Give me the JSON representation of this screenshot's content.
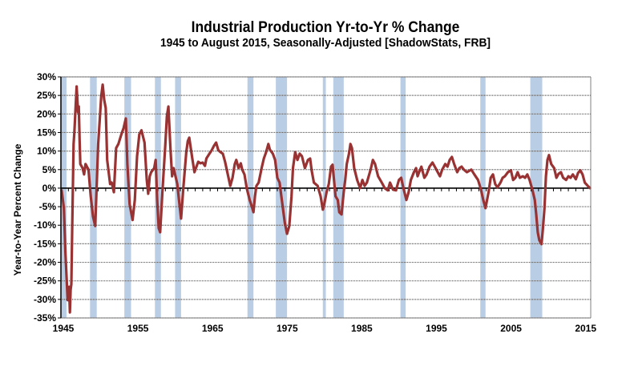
{
  "chart_data": {
    "type": "line",
    "title": "Industrial Production Yr-to-Yr %  Change",
    "subtitle": "1945 to August 2015, Seasonally-Adjusted [ShadowStats, FRB]",
    "xlabel": "",
    "ylabel": "Year-to-Year Percent Change",
    "xlim": [
      1945,
      2016
    ],
    "ylim": [
      -35,
      30
    ],
    "grid": true,
    "x_ticks": [
      {
        "value": 1945,
        "label": "1945"
      },
      {
        "value": 1955,
        "label": "1955"
      },
      {
        "value": 1965,
        "label": "1965"
      },
      {
        "value": 1975,
        "label": "1975"
      },
      {
        "value": 1985,
        "label": "1985"
      },
      {
        "value": 1995,
        "label": "1995"
      },
      {
        "value": 2005,
        "label": "2005"
      },
      {
        "value": 2015,
        "label": "2015"
      }
    ],
    "y_ticks": [
      {
        "value": 30,
        "label": "30%"
      },
      {
        "value": 25,
        "label": "25%"
      },
      {
        "value": 20,
        "label": "20%"
      },
      {
        "value": 15,
        "label": "15%"
      },
      {
        "value": 10,
        "label": "10%"
      },
      {
        "value": 5,
        "label": "5%"
      },
      {
        "value": 0,
        "label": "0%"
      },
      {
        "value": -5,
        "label": "-5%"
      },
      {
        "value": -10,
        "label": "-10%"
      },
      {
        "value": -15,
        "label": "-15%"
      },
      {
        "value": -20,
        "label": "-20%"
      },
      {
        "value": -25,
        "label": "-25%"
      },
      {
        "value": -30,
        "label": "-30%"
      },
      {
        "value": -35,
        "label": "-35%"
      }
    ],
    "recessions": [
      [
        1945.0,
        1945.75
      ],
      [
        1948.9,
        1949.8
      ],
      [
        1953.5,
        1954.4
      ],
      [
        1957.6,
        1958.4
      ],
      [
        1960.3,
        1961.1
      ],
      [
        1970.0,
        1970.8
      ],
      [
        1973.8,
        1975.3
      ],
      [
        1980.1,
        1980.5
      ],
      [
        1981.5,
        1982.9
      ],
      [
        1990.5,
        1991.2
      ],
      [
        2001.2,
        2001.9
      ],
      [
        2007.9,
        2009.5
      ]
    ],
    "colors": {
      "line": "#993333",
      "recession": "#B9CDE5",
      "grid": "#555555",
      "axis": "#000000",
      "frame": "#808080"
    },
    "series": [
      {
        "name": "Industrial Production Yr-to-Yr % Change",
        "x": [
          1945.1,
          1945.4,
          1945.6,
          1945.9,
          1946.1,
          1946.2,
          1946.3,
          1946.4,
          1946.5,
          1946.7,
          1946.8,
          1947.1,
          1947.3,
          1947.4,
          1947.5,
          1947.6,
          1947.9,
          1948.1,
          1948.3,
          1948.7,
          1949.0,
          1949.3,
          1949.6,
          1949.8,
          1950.0,
          1950.4,
          1950.6,
          1950.8,
          1951.0,
          1951.2,
          1951.6,
          1951.8,
          1952.1,
          1952.4,
          1952.7,
          1953.1,
          1953.4,
          1953.7,
          1953.9,
          1954.2,
          1954.6,
          1954.9,
          1955.2,
          1955.5,
          1955.8,
          1956.2,
          1956.5,
          1956.7,
          1956.9,
          1957.1,
          1957.5,
          1957.7,
          1957.9,
          1958.1,
          1958.3,
          1958.6,
          1959.0,
          1959.2,
          1959.4,
          1959.6,
          1959.7,
          1959.9,
          1960.1,
          1960.4,
          1960.6,
          1960.8,
          1961.1,
          1961.4,
          1961.8,
          1962.0,
          1962.2,
          1962.4,
          1962.6,
          1962.9,
          1963.4,
          1963.7,
          1964.0,
          1964.3,
          1964.5,
          1964.9,
          1965.2,
          1965.5,
          1965.8,
          1966.1,
          1966.4,
          1966.7,
          1967.0,
          1967.3,
          1967.7,
          1968.0,
          1968.3,
          1968.5,
          1968.8,
          1969.1,
          1969.3,
          1969.6,
          1969.9,
          1970.3,
          1970.6,
          1970.8,
          1971.0,
          1971.2,
          1971.5,
          1971.9,
          1972.2,
          1972.5,
          1972.8,
          1973.0,
          1973.4,
          1973.7,
          1974.0,
          1974.3,
          1974.6,
          1975.0,
          1975.3,
          1975.6,
          1975.9,
          1976.1,
          1976.4,
          1976.7,
          1977.0,
          1977.3,
          1977.7,
          1978.1,
          1978.4,
          1978.6,
          1978.9,
          1979.4,
          1979.8,
          1980.1,
          1980.3,
          1980.6,
          1980.9,
          1981.2,
          1981.4,
          1981.6,
          1981.8,
          1982.1,
          1982.3,
          1982.6,
          1982.9,
          1983.1,
          1983.3,
          1983.6,
          1983.8,
          1984.0,
          1984.3,
          1984.7,
          1985.1,
          1985.4,
          1985.7,
          1986.0,
          1986.5,
          1986.8,
          1987.1,
          1987.5,
          1988.0,
          1988.4,
          1988.8,
          1989.1,
          1989.5,
          1989.9,
          1990.3,
          1990.6,
          1990.9,
          1991.3,
          1991.6,
          1991.9,
          1992.3,
          1992.6,
          1992.8,
          1993.0,
          1993.3,
          1993.7,
          1994.0,
          1994.4,
          1994.8,
          1995.2,
          1995.5,
          1995.8,
          1996.1,
          1996.5,
          1996.8,
          1997.1,
          1997.4,
          1997.7,
          1998.1,
          1998.4,
          1998.7,
          1999.0,
          1999.4,
          2000.0,
          2000.4,
          2000.9,
          2001.3,
          2001.6,
          2001.9,
          2002.3,
          2002.6,
          2002.9,
          2003.2,
          2003.5,
          2003.9,
          2004.2,
          2004.5,
          2004.9,
          2005.3,
          2005.6,
          2005.9,
          2006.2,
          2006.5,
          2006.9,
          2007.2,
          2007.5,
          2007.8,
          2008.2,
          2008.5,
          2008.7,
          2008.9,
          2009.1,
          2009.4,
          2009.6,
          2009.8,
          2010.0,
          2010.2,
          2010.4,
          2010.7,
          2011.1,
          2011.4,
          2011.7,
          2012.0,
          2012.3,
          2012.7,
          2013.0,
          2013.3,
          2013.6,
          2014.0,
          2014.3,
          2014.6,
          2014.9,
          2015.2,
          2015.6,
          2015.9
        ],
        "values": [
          -0.6,
          -5.4,
          -17.3,
          -30.2,
          -26.6,
          -33.5,
          -27.4,
          -25.9,
          -11.9,
          11.9,
          15.1,
          27.4,
          20.5,
          22.0,
          13.0,
          6.5,
          5.4,
          3.7,
          6.5,
          5.0,
          -2.2,
          -7.6,
          -10.2,
          1.1,
          11.9,
          24.8,
          27.9,
          23.8,
          21.6,
          7.6,
          1.1,
          1.5,
          -1.1,
          10.8,
          11.9,
          14.5,
          16.2,
          18.8,
          6.5,
          -4.3,
          -8.6,
          -3.2,
          8.6,
          14.5,
          15.6,
          12.3,
          2.2,
          -1.5,
          3.2,
          4.3,
          5.4,
          7.6,
          -3.2,
          -10.8,
          -11.9,
          -1.1,
          11.9,
          19.4,
          22.0,
          14.0,
          9.7,
          3.2,
          5.4,
          2.8,
          1.1,
          -2.8,
          -8.2,
          0.0,
          9.7,
          12.7,
          13.6,
          10.8,
          8.0,
          4.3,
          7.1,
          6.7,
          6.9,
          6.0,
          8.0,
          9.3,
          10.2,
          11.4,
          12.3,
          10.2,
          9.7,
          9.3,
          7.1,
          4.3,
          0.6,
          2.8,
          6.5,
          7.6,
          5.4,
          6.7,
          5.0,
          3.7,
          0.0,
          -3.2,
          -5.0,
          -6.5,
          -2.2,
          0.6,
          1.5,
          5.4,
          8.0,
          9.7,
          11.9,
          10.4,
          9.3,
          7.6,
          2.8,
          1.5,
          -3.2,
          -9.3,
          -12.3,
          -10.2,
          -2.2,
          5.4,
          9.7,
          7.6,
          9.3,
          8.6,
          5.4,
          7.6,
          8.0,
          4.8,
          1.5,
          0.6,
          -2.2,
          -5.8,
          -4.3,
          -1.1,
          1.1,
          5.8,
          6.3,
          2.2,
          -2.2,
          -3.2,
          -6.5,
          -7.1,
          -1.1,
          2.2,
          6.5,
          9.3,
          11.9,
          10.8,
          5.4,
          2.2,
          0.0,
          2.2,
          0.6,
          1.5,
          5.0,
          7.6,
          6.5,
          3.2,
          1.5,
          0.0,
          -0.6,
          1.5,
          -0.4,
          -0.6,
          2.2,
          2.8,
          0.0,
          -3.2,
          -1.1,
          2.2,
          4.3,
          5.4,
          3.2,
          4.3,
          5.8,
          2.8,
          3.7,
          5.8,
          6.9,
          5.4,
          4.3,
          3.2,
          5.0,
          6.5,
          5.8,
          7.6,
          8.4,
          6.5,
          4.3,
          5.4,
          5.8,
          5.0,
          4.3,
          5.0,
          3.7,
          2.2,
          -0.4,
          -3.2,
          -5.4,
          -1.1,
          2.8,
          3.7,
          1.1,
          0.2,
          1.5,
          2.8,
          3.2,
          4.3,
          4.8,
          2.2,
          2.8,
          4.3,
          2.8,
          3.2,
          2.8,
          3.7,
          2.2,
          -0.6,
          -3.2,
          -7.1,
          -11.9,
          -14.0,
          -15.1,
          -10.8,
          -5.4,
          3.2,
          7.6,
          8.9,
          6.5,
          5.4,
          2.8,
          3.9,
          4.3,
          2.8,
          2.2,
          3.2,
          2.8,
          3.7,
          2.4,
          4.1,
          4.8,
          3.7,
          1.5,
          0.6,
          0.0
        ]
      }
    ]
  }
}
